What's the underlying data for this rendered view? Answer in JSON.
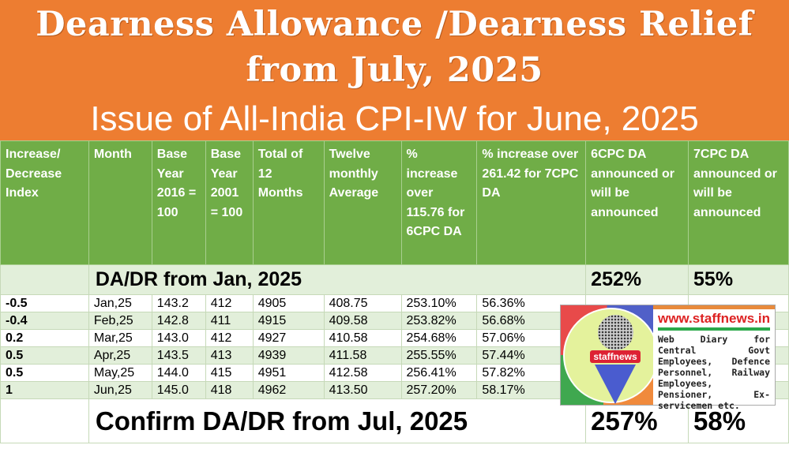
{
  "banner": {
    "title_line1": "Dearness Allowance /Dearness Relief",
    "title_line2": "from July, 2025",
    "subtitle": "Issue of All-India CPI-IW for June, 2025"
  },
  "colors": {
    "banner": "#ED7D31",
    "header": "#70AD47",
    "band": "#E2EFDA"
  },
  "table": {
    "headers": [
      "Increase/ Decrease Index",
      "Month",
      "Base Year 2016 = 100",
      "Base Year 2001 = 100",
      "Total of 12 Months",
      "Twelve monthly Average",
      "% increase over 115.76 for 6CPC DA",
      "% increase over 261.42 for 7CPC DA",
      "6CPC DA announced or will be announced",
      "7CPC DA announced or will be announced"
    ],
    "da_jan": {
      "label": "DA/DR from Jan, 2025",
      "da6": "252%",
      "da7": "55%"
    },
    "rows": [
      [
        "-0.5",
        "Jan,25",
        "143.2",
        "412",
        "4905",
        "408.75",
        "253.10%",
        "56.36%"
      ],
      [
        "-0.4",
        "Feb,25",
        "142.8",
        "411",
        "4915",
        "409.58",
        "253.82%",
        "56.68%"
      ],
      [
        "0.2",
        "Mar,25",
        "143.0",
        "412",
        "4927",
        "410.58",
        "254.68%",
        "57.06%"
      ],
      [
        "0.5",
        "Apr,25",
        "143.5",
        "413",
        "4939",
        "411.58",
        "255.55%",
        "57.44%"
      ],
      [
        "0.5",
        "May,25",
        "144.0",
        "415",
        "4951",
        "412.58",
        "256.41%",
        "57.82%"
      ],
      [
        "1",
        "Jun,25",
        "145.0",
        "418",
        "4962",
        "413.50",
        "257.20%",
        "58.17%"
      ]
    ],
    "confirm": {
      "label": "Confirm DA/DR from Jul, 2025",
      "da6": "257%",
      "da7": "58%"
    }
  },
  "logo": {
    "brand": "staffnews",
    "url": "www.staffnews.in",
    "description": "Web Diary for Central Govt Employees, Defence Personnel, Railway Employees, Pensioner, Ex-servicemen etc."
  }
}
